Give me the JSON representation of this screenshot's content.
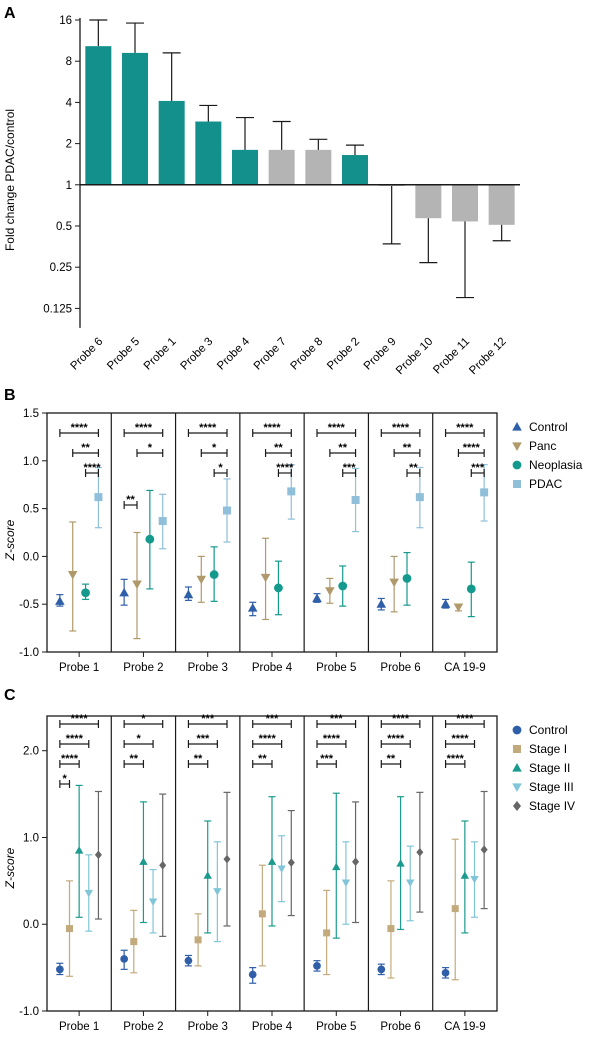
{
  "colors": {
    "teal": "#138f8c",
    "gray": "#b4b4b4",
    "control": "#2f5fa8",
    "panc": "#b09a6b",
    "neoplasia": "#139a8c",
    "pdac": "#8fbfd9",
    "stage1": "#c3aa7c",
    "stage2": "#1b9a8e",
    "stage3": "#80c6d8",
    "stage4": "#666666",
    "axis": "#1a1a1a"
  },
  "chart_data": [
    {
      "panel": "A",
      "type": "bar",
      "ylabel": "Fold change PDAC/control",
      "yscale": "log2",
      "ylim": [
        0.09,
        16
      ],
      "yticks": [
        16,
        8,
        4,
        2,
        1,
        0.5,
        0.25,
        0.125
      ],
      "ytick_labels": [
        "16",
        "8",
        "4",
        "2",
        "1",
        "0.5",
        "0.25",
        "0.125"
      ],
      "baseline": 1,
      "categories": [
        "Probe 6",
        "Probe 5",
        "Probe 1",
        "Probe 3",
        "Probe 4",
        "Probe 7",
        "Probe 8",
        "Probe 2",
        "Probe 9",
        "Probe 10",
        "Probe 11",
        "Probe 12"
      ],
      "values": [
        10.3,
        9.2,
        4.1,
        2.9,
        1.8,
        1.8,
        1.8,
        1.65,
        0.98,
        0.57,
        0.54,
        0.51
      ],
      "error_tip": [
        16,
        15.2,
        9.2,
        3.8,
        3.1,
        2.9,
        2.15,
        1.95,
        0.37,
        0.27,
        0.15,
        0.39
      ],
      "highlight": [
        true,
        true,
        true,
        true,
        true,
        false,
        false,
        true,
        false,
        false,
        false,
        false
      ]
    },
    {
      "panel": "B",
      "type": "scatter",
      "ylabel": "Z-score",
      "ylim": [
        -1.0,
        1.5
      ],
      "yticks": [
        -1.0,
        -0.5,
        0.0,
        0.5,
        1.0,
        1.5
      ],
      "ytick_labels": [
        "-1.0",
        "-0.5",
        "0.0",
        "0.5",
        "1.0",
        "1.5"
      ],
      "groups": [
        "Probe 1",
        "Probe 2",
        "Probe 3",
        "Probe 4",
        "Probe 5",
        "Probe 6",
        "CA 19-9"
      ],
      "series": [
        {
          "name": "Control",
          "marker": "triangle-up",
          "color_key": "control",
          "mean": [
            -0.47,
            -0.38,
            -0.4,
            -0.54,
            -0.44,
            -0.5,
            -0.5
          ],
          "low": [
            -0.52,
            -0.51,
            -0.46,
            -0.62,
            -0.48,
            -0.56,
            -0.54
          ],
          "high": [
            -0.4,
            -0.24,
            -0.32,
            -0.48,
            -0.39,
            -0.44,
            -0.45
          ]
        },
        {
          "name": "Panc",
          "marker": "triangle-down",
          "color_key": "panc",
          "mean": [
            -0.19,
            -0.29,
            -0.24,
            -0.22,
            -0.36,
            -0.27,
            -0.53
          ],
          "low": [
            -0.78,
            -0.86,
            -0.48,
            -0.66,
            -0.49,
            -0.58,
            -0.57
          ],
          "high": [
            0.36,
            0.25,
            0.0,
            0.19,
            -0.23,
            0.0,
            -0.5
          ]
        },
        {
          "name": "Neoplasia",
          "marker": "circle",
          "color_key": "neoplasia",
          "mean": [
            -0.38,
            0.18,
            -0.19,
            -0.33,
            -0.31,
            -0.23,
            -0.34
          ],
          "low": [
            -0.45,
            -0.34,
            -0.47,
            -0.61,
            -0.52,
            -0.51,
            -0.63
          ],
          "high": [
            -0.29,
            0.69,
            0.1,
            -0.05,
            -0.1,
            0.04,
            -0.06
          ]
        },
        {
          "name": "PDAC",
          "marker": "square",
          "color_key": "pdac",
          "mean": [
            0.62,
            0.37,
            0.48,
            0.68,
            0.59,
            0.62,
            0.67
          ],
          "low": [
            0.3,
            0.08,
            0.15,
            0.39,
            0.26,
            0.3,
            0.37
          ],
          "high": [
            0.93,
            0.65,
            0.81,
            0.96,
            0.92,
            0.93,
            0.96
          ]
        }
      ],
      "significance": [
        [
          {
            "from": 0,
            "to": 3,
            "label": "****"
          },
          {
            "from": 1,
            "to": 3,
            "label": "**"
          },
          {
            "from": 2,
            "to": 3,
            "label": "****"
          }
        ],
        [
          {
            "from": 0,
            "to": 3,
            "label": "****"
          },
          {
            "from": 1,
            "to": 3,
            "label": "*"
          },
          {
            "from": 0,
            "to": 1,
            "label": "**",
            "low": true
          }
        ],
        [
          {
            "from": 0,
            "to": 3,
            "label": "****"
          },
          {
            "from": 1,
            "to": 3,
            "label": "*"
          },
          {
            "from": 2,
            "to": 3,
            "label": "*"
          }
        ],
        [
          {
            "from": 0,
            "to": 3,
            "label": "****"
          },
          {
            "from": 1,
            "to": 3,
            "label": "**"
          },
          {
            "from": 2,
            "to": 3,
            "label": "****"
          }
        ],
        [
          {
            "from": 0,
            "to": 3,
            "label": "****"
          },
          {
            "from": 1,
            "to": 3,
            "label": "**"
          },
          {
            "from": 2,
            "to": 3,
            "label": "***"
          }
        ],
        [
          {
            "from": 0,
            "to": 3,
            "label": "****"
          },
          {
            "from": 1,
            "to": 3,
            "label": "**"
          },
          {
            "from": 2,
            "to": 3,
            "label": "**"
          }
        ],
        [
          {
            "from": 0,
            "to": 3,
            "label": "****"
          },
          {
            "from": 1,
            "to": 3,
            "label": "****"
          },
          {
            "from": 2,
            "to": 3,
            "label": "***"
          }
        ]
      ]
    },
    {
      "panel": "C",
      "type": "scatter",
      "ylabel": "Z-score",
      "ylim": [
        -1.0,
        2.4
      ],
      "yticks": [
        -1.0,
        0.0,
        1.0,
        2.0
      ],
      "ytick_labels": [
        "-1.0",
        "0.0",
        "1.0",
        "2.0"
      ],
      "groups": [
        "Probe 1",
        "Probe 2",
        "Probe 3",
        "Probe 4",
        "Probe 5",
        "Probe 6",
        "CA 19-9"
      ],
      "series": [
        {
          "name": "Control",
          "marker": "circle",
          "color_key": "control",
          "mean": [
            -0.52,
            -0.4,
            -0.42,
            -0.58,
            -0.48,
            -0.52,
            -0.56
          ],
          "low": [
            -0.58,
            -0.52,
            -0.48,
            -0.68,
            -0.54,
            -0.58,
            -0.62
          ],
          "high": [
            -0.45,
            -0.3,
            -0.36,
            -0.5,
            -0.42,
            -0.46,
            -0.5
          ]
        },
        {
          "name": "Stage I",
          "marker": "square",
          "color_key": "stage1",
          "mean": [
            -0.05,
            -0.2,
            -0.18,
            0.12,
            -0.1,
            -0.05,
            0.18
          ],
          "low": [
            -0.6,
            -0.56,
            -0.48,
            -0.48,
            -0.58,
            -0.62,
            -0.64
          ],
          "high": [
            0.5,
            0.16,
            0.12,
            0.68,
            0.39,
            0.5,
            0.98
          ]
        },
        {
          "name": "Stage II",
          "marker": "triangle-up",
          "color_key": "stage2",
          "mean": [
            0.85,
            0.72,
            0.56,
            0.72,
            0.66,
            0.7,
            0.56
          ],
          "low": [
            0.08,
            0.02,
            -0.1,
            -0.02,
            -0.16,
            -0.06,
            -0.1
          ],
          "high": [
            1.6,
            1.41,
            1.19,
            1.47,
            1.51,
            1.47,
            1.19
          ]
        },
        {
          "name": "Stage III",
          "marker": "triangle-down",
          "color_key": "stage3",
          "mean": [
            0.36,
            0.26,
            0.38,
            0.64,
            0.48,
            0.48,
            0.52
          ],
          "low": [
            -0.08,
            -0.1,
            -0.2,
            0.26,
            0.0,
            0.04,
            0.08
          ],
          "high": [
            0.8,
            0.63,
            0.95,
            1.02,
            0.95,
            0.9,
            0.95
          ]
        },
        {
          "name": "Stage IV",
          "marker": "diamond",
          "color_key": "stage4",
          "mean": [
            0.8,
            0.68,
            0.75,
            0.71,
            0.72,
            0.83,
            0.86
          ],
          "low": [
            0.06,
            -0.14,
            -0.02,
            0.1,
            0.02,
            0.14,
            0.18
          ],
          "high": [
            1.53,
            1.5,
            1.52,
            1.31,
            1.41,
            1.52,
            1.53
          ]
        }
      ],
      "significance": [
        [
          {
            "from": 0,
            "to": 4,
            "label": "****"
          },
          {
            "from": 0,
            "to": 3,
            "label": "****"
          },
          {
            "from": 0,
            "to": 2,
            "label": "****"
          },
          {
            "from": 0,
            "to": 1,
            "label": "*"
          }
        ],
        [
          {
            "from": 0,
            "to": 4,
            "label": "*"
          },
          {
            "from": 0,
            "to": 3,
            "label": "*"
          },
          {
            "from": 0,
            "to": 2,
            "label": "**"
          }
        ],
        [
          {
            "from": 0,
            "to": 4,
            "label": "***"
          },
          {
            "from": 0,
            "to": 3,
            "label": "***"
          },
          {
            "from": 0,
            "to": 2,
            "label": "**"
          }
        ],
        [
          {
            "from": 0,
            "to": 4,
            "label": "***"
          },
          {
            "from": 0,
            "to": 3,
            "label": "****"
          },
          {
            "from": 0,
            "to": 2,
            "label": "**"
          }
        ],
        [
          {
            "from": 0,
            "to": 4,
            "label": "***"
          },
          {
            "from": 0,
            "to": 3,
            "label": "****"
          },
          {
            "from": 0,
            "to": 2,
            "label": "***"
          }
        ],
        [
          {
            "from": 0,
            "to": 4,
            "label": "****"
          },
          {
            "from": 0,
            "to": 3,
            "label": "****"
          },
          {
            "from": 0,
            "to": 2,
            "label": "**"
          }
        ],
        [
          {
            "from": 0,
            "to": 4,
            "label": "****"
          },
          {
            "from": 0,
            "to": 3,
            "label": "****"
          },
          {
            "from": 0,
            "to": 2,
            "label": "****"
          }
        ]
      ]
    }
  ]
}
